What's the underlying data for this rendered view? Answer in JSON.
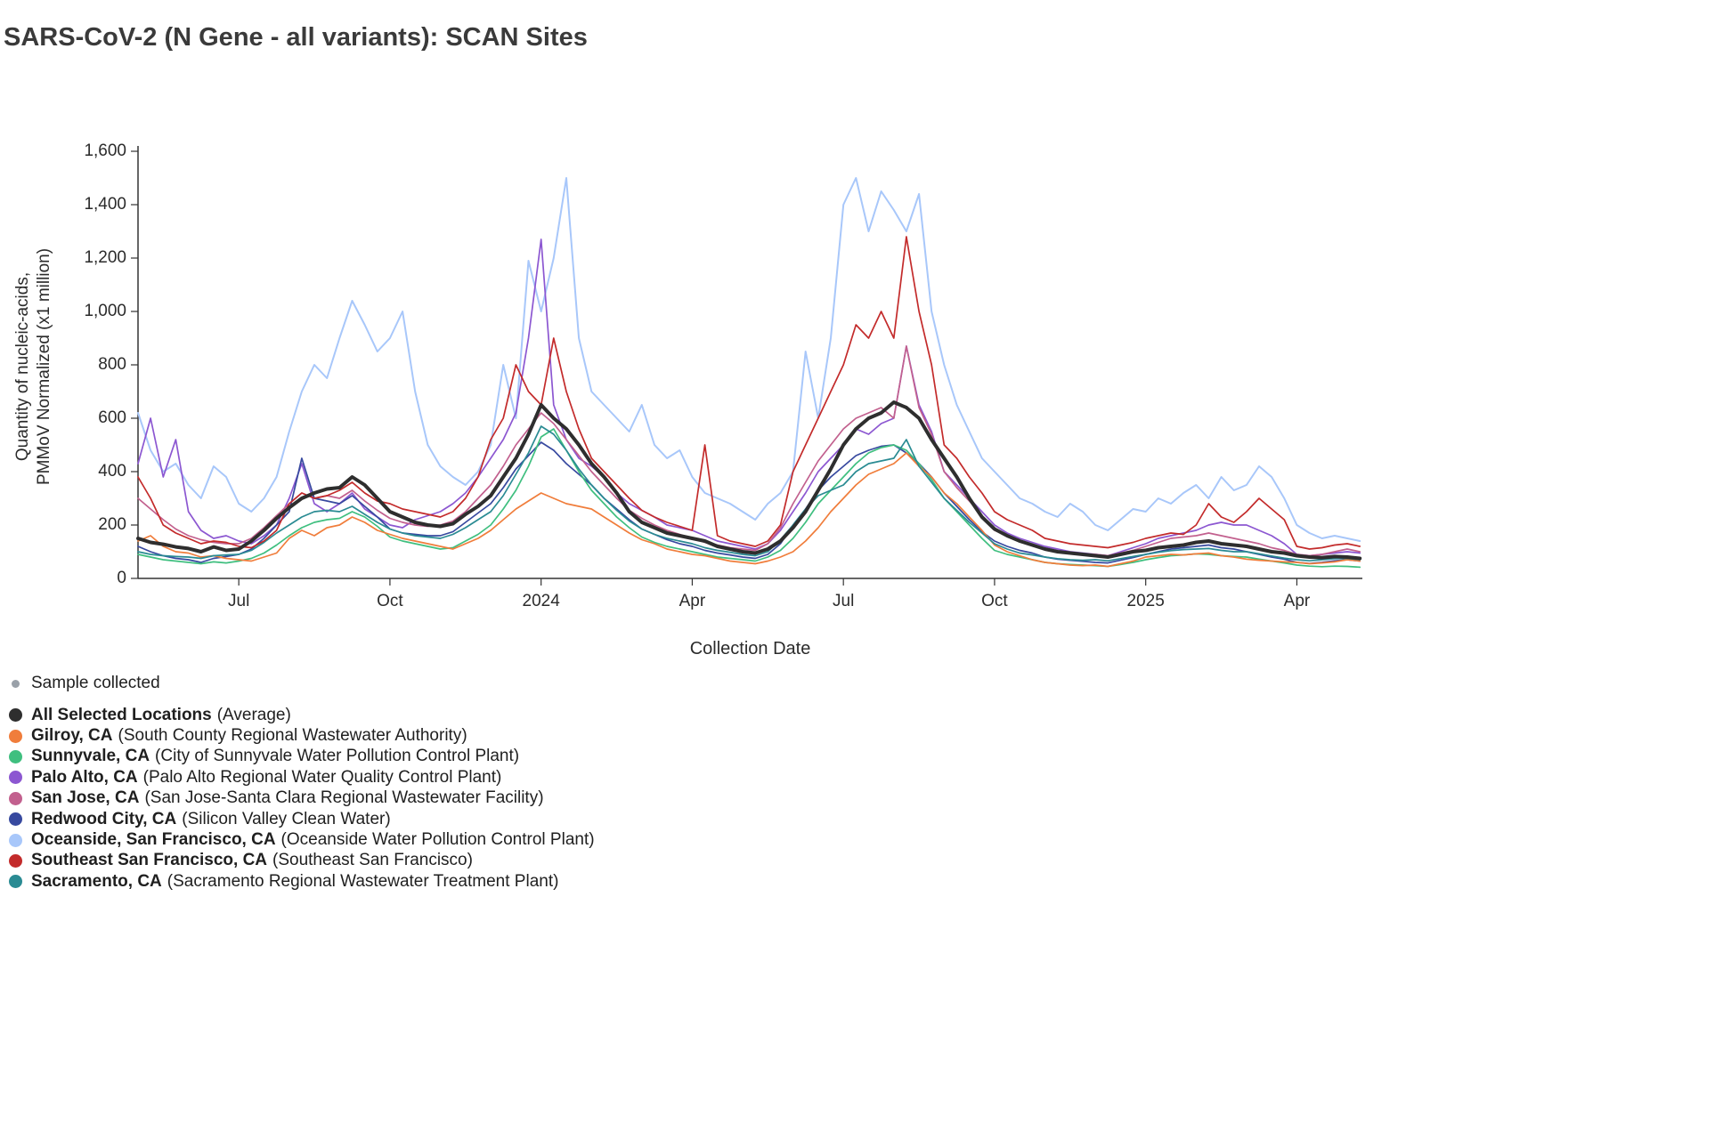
{
  "page_title": "SARS-CoV-2 (N Gene - all variants): SCAN Sites",
  "legend": {
    "sample_collected_label": "Sample collected",
    "sample_dot_color": "#9aa1a9"
  },
  "chart_data": {
    "type": "line",
    "title": "SARS-CoV-2 (N Gene - all variants): SCAN Sites",
    "xlabel": "Collection Date",
    "ylabel_lines": [
      "Quantity of nucleic-acids,",
      "PMMoV Normalized (x1 million)"
    ],
    "ylim": [
      0,
      1600
    ],
    "x_domain_months": [
      0,
      24.3
    ],
    "x_start_label": "May 2023",
    "x_step_months": 0.25,
    "grid": false,
    "legend_position": "bottom-left",
    "yticks": [
      {
        "label": "0",
        "value": 0
      },
      {
        "label": "200",
        "value": 200
      },
      {
        "label": "400",
        "value": 400
      },
      {
        "label": "600",
        "value": 600
      },
      {
        "label": "800",
        "value": 800
      },
      {
        "label": "1,000",
        "value": 1000
      },
      {
        "label": "1,200",
        "value": 1200
      },
      {
        "label": "1,400",
        "value": 1400
      },
      {
        "label": "1,600",
        "value": 1600
      }
    ],
    "xticks": [
      {
        "label": "Jul",
        "month": 2
      },
      {
        "label": "Oct",
        "month": 5
      },
      {
        "label": "2024",
        "month": 8
      },
      {
        "label": "Apr",
        "month": 11
      },
      {
        "label": "Jul",
        "month": 14
      },
      {
        "label": "Oct",
        "month": 17
      },
      {
        "label": "2025",
        "month": 20
      },
      {
        "label": "Apr",
        "month": 23
      }
    ],
    "series": [
      {
        "name": "All Selected Locations",
        "detail": "(Average)",
        "color": "#2e2e2e",
        "values": [
          150,
          135,
          128,
          118,
          112,
          100,
          118,
          105,
          110,
          140,
          180,
          225,
          265,
          300,
          320,
          335,
          340,
          380,
          350,
          300,
          250,
          230,
          210,
          200,
          195,
          205,
          240,
          270,
          310,
          380,
          450,
          540,
          650,
          600,
          560,
          500,
          430,
          380,
          320,
          250,
          210,
          190,
          170,
          160,
          150,
          140,
          120,
          110,
          100,
          95,
          110,
          140,
          190,
          250,
          330,
          410,
          500,
          560,
          600,
          620,
          660,
          640,
          600,
          520,
          450,
          380,
          300,
          230,
          185,
          160,
          140,
          125,
          110,
          100,
          95,
          90,
          85,
          80,
          90,
          100,
          105,
          115,
          120,
          125,
          135,
          140,
          130,
          125,
          120,
          110,
          100,
          95,
          85,
          80,
          78,
          82,
          80,
          75
        ]
      },
      {
        "name": "Gilroy, CA",
        "detail": "(South County Regional Wastewater Authority)",
        "color": "#f07d3b",
        "values": [
          140,
          160,
          120,
          100,
          95,
          80,
          85,
          75,
          70,
          65,
          80,
          95,
          150,
          180,
          160,
          190,
          200,
          230,
          210,
          180,
          165,
          150,
          140,
          130,
          120,
          110,
          130,
          150,
          180,
          220,
          260,
          290,
          320,
          300,
          280,
          270,
          260,
          230,
          200,
          170,
          145,
          130,
          110,
          100,
          90,
          85,
          75,
          65,
          60,
          55,
          65,
          80,
          100,
          140,
          190,
          250,
          300,
          350,
          390,
          410,
          430,
          470,
          420,
          380,
          320,
          280,
          230,
          180,
          125,
          100,
          85,
          70,
          60,
          55,
          50,
          48,
          50,
          45,
          55,
          65,
          80,
          85,
          90,
          88,
          92,
          95,
          85,
          80,
          72,
          68,
          65,
          62,
          60,
          55,
          58,
          62,
          70,
          65
        ]
      },
      {
        "name": "Sunnyvale, CA",
        "detail": "(City of Sunnyvale Water Pollution Control Plant)",
        "color": "#3fbf7f",
        "values": [
          90,
          80,
          70,
          65,
          60,
          55,
          62,
          58,
          65,
          75,
          95,
          125,
          160,
          190,
          210,
          220,
          225,
          250,
          230,
          195,
          155,
          140,
          130,
          120,
          110,
          115,
          140,
          165,
          200,
          260,
          330,
          420,
          530,
          560,
          480,
          400,
          330,
          280,
          230,
          190,
          155,
          135,
          120,
          110,
          100,
          90,
          80,
          75,
          70,
          65,
          80,
          105,
          150,
          210,
          280,
          330,
          380,
          430,
          470,
          490,
          500,
          480,
          430,
          370,
          300,
          250,
          200,
          150,
          105,
          90,
          80,
          70,
          60,
          55,
          52,
          50,
          48,
          45,
          52,
          60,
          70,
          78,
          85,
          88,
          92,
          90,
          85,
          82,
          80,
          72,
          65,
          58,
          50,
          46,
          44,
          46,
          45,
          42
        ]
      },
      {
        "name": "Palo Alto, CA",
        "detail": "(Palo Alto Regional Water Quality Control Plant)",
        "color": "#8c57d1",
        "values": [
          430,
          600,
          380,
          520,
          250,
          180,
          150,
          160,
          140,
          130,
          160,
          200,
          300,
          430,
          280,
          250,
          280,
          320,
          260,
          230,
          200,
          190,
          220,
          235,
          250,
          280,
          320,
          380,
          450,
          520,
          620,
          900,
          1270,
          650,
          520,
          450,
          420,
          380,
          320,
          280,
          255,
          230,
          200,
          190,
          180,
          160,
          140,
          130,
          120,
          110,
          130,
          180,
          250,
          320,
          400,
          450,
          500,
          560,
          540,
          580,
          600,
          870,
          650,
          550,
          400,
          350,
          300,
          250,
          200,
          170,
          150,
          135,
          120,
          110,
          100,
          95,
          90,
          85,
          100,
          115,
          130,
          150,
          160,
          170,
          180,
          200,
          210,
          200,
          200,
          180,
          160,
          130,
          90,
          85,
          90,
          95,
          100,
          95
        ]
      },
      {
        "name": "San Jose, CA",
        "detail": "(San Jose-Santa Clara Regional Wastewater Facility)",
        "color": "#c2608e",
        "values": [
          300,
          260,
          220,
          185,
          160,
          145,
          135,
          130,
          130,
          150,
          190,
          235,
          280,
          320,
          300,
          310,
          300,
          330,
          290,
          255,
          225,
          210,
          200,
          195,
          200,
          215,
          250,
          300,
          350,
          420,
          500,
          560,
          620,
          580,
          520,
          460,
          400,
          350,
          300,
          255,
          225,
          200,
          180,
          165,
          150,
          135,
          125,
          115,
          110,
          105,
          130,
          190,
          280,
          360,
          440,
          500,
          560,
          600,
          620,
          640,
          600,
          870,
          640,
          540,
          400,
          340,
          290,
          235,
          180,
          160,
          140,
          125,
          110,
          100,
          95,
          92,
          90,
          85,
          95,
          105,
          120,
          135,
          150,
          155,
          160,
          170,
          160,
          150,
          140,
          130,
          115,
          105,
          90,
          85,
          90,
          100,
          110,
          100
        ]
      },
      {
        "name": "Redwood City, CA",
        "detail": "(Silicon Valley Clean Water)",
        "color": "#37499f",
        "values": [
          120,
          100,
          85,
          75,
          70,
          60,
          75,
          82,
          90,
          110,
          150,
          200,
          250,
          450,
          300,
          290,
          280,
          310,
          270,
          230,
          185,
          170,
          165,
          160,
          160,
          175,
          210,
          245,
          280,
          340,
          410,
          460,
          510,
          480,
          430,
          390,
          350,
          300,
          260,
          220,
          185,
          165,
          145,
          130,
          120,
          105,
          95,
          88,
          80,
          75,
          90,
          130,
          200,
          260,
          330,
          380,
          420,
          460,
          480,
          495,
          500,
          470,
          430,
          380,
          320,
          270,
          220,
          175,
          140,
          120,
          105,
          95,
          80,
          72,
          68,
          64,
          60,
          58,
          68,
          78,
          90,
          100,
          110,
          115,
          120,
          125,
          115,
          110,
          100,
          90,
          80,
          72,
          60,
          56,
          60,
          66,
          70,
          65
        ]
      },
      {
        "name": "Oceanside, San Francisco, CA",
        "detail": "(Oceanside Water Pollution Control Plant)",
        "color": "#a8c7fa",
        "values": [
          620,
          480,
          400,
          430,
          350,
          300,
          420,
          380,
          280,
          250,
          300,
          380,
          550,
          700,
          800,
          750,
          900,
          1040,
          950,
          850,
          900,
          1000,
          700,
          500,
          420,
          380,
          350,
          400,
          500,
          800,
          600,
          1190,
          1000,
          1200,
          1500,
          900,
          700,
          650,
          600,
          550,
          650,
          500,
          450,
          480,
          380,
          320,
          300,
          280,
          250,
          220,
          280,
          320,
          400,
          850,
          600,
          900,
          1400,
          1500,
          1300,
          1450,
          1380,
          1300,
          1440,
          1000,
          800,
          650,
          550,
          450,
          400,
          350,
          300,
          280,
          250,
          230,
          280,
          250,
          200,
          180,
          220,
          260,
          250,
          300,
          280,
          320,
          350,
          300,
          380,
          330,
          350,
          420,
          380,
          300,
          200,
          170,
          150,
          160,
          150,
          140
        ]
      },
      {
        "name": "Southeast San Francisco, CA",
        "detail": "(Southeast San Francisco)",
        "color": "#c32b2b",
        "values": [
          380,
          300,
          200,
          170,
          150,
          130,
          140,
          135,
          120,
          115,
          140,
          180,
          280,
          320,
          300,
          310,
          330,
          360,
          320,
          290,
          280,
          260,
          250,
          240,
          230,
          250,
          300,
          380,
          520,
          600,
          800,
          700,
          650,
          900,
          700,
          560,
          450,
          400,
          350,
          300,
          255,
          230,
          210,
          195,
          180,
          500,
          160,
          140,
          130,
          120,
          140,
          200,
          400,
          500,
          600,
          700,
          800,
          950,
          900,
          1000,
          900,
          1280,
          1000,
          800,
          500,
          450,
          380,
          320,
          250,
          220,
          200,
          180,
          150,
          140,
          130,
          125,
          120,
          115,
          125,
          135,
          150,
          160,
          170,
          165,
          200,
          280,
          230,
          210,
          250,
          300,
          260,
          220,
          120,
          110,
          115,
          125,
          130,
          120
        ]
      },
      {
        "name": "Sacramento, CA",
        "detail": "(Sacramento Regional Wastewater Treatment Plant)",
        "color": "#2a8b93",
        "values": [
          100,
          90,
          85,
          82,
          80,
          75,
          85,
          88,
          90,
          105,
          135,
          170,
          200,
          230,
          250,
          255,
          250,
          270,
          240,
          210,
          185,
          170,
          160,
          155,
          150,
          165,
          190,
          220,
          250,
          310,
          390,
          470,
          570,
          540,
          480,
          410,
          350,
          300,
          255,
          215,
          185,
          165,
          150,
          140,
          130,
          115,
          105,
          98,
          90,
          85,
          100,
          145,
          200,
          260,
          310,
          330,
          350,
          400,
          430,
          440,
          450,
          520,
          420,
          360,
          300,
          255,
          210,
          170,
          130,
          110,
          95,
          88,
          80,
          74,
          70,
          68,
          70,
          66,
          74,
          82,
          90,
          98,
          104,
          108,
          110,
          112,
          105,
          100,
          100,
          92,
          84,
          76,
          70,
          66,
          70,
          74,
          75,
          70
        ]
      }
    ]
  }
}
